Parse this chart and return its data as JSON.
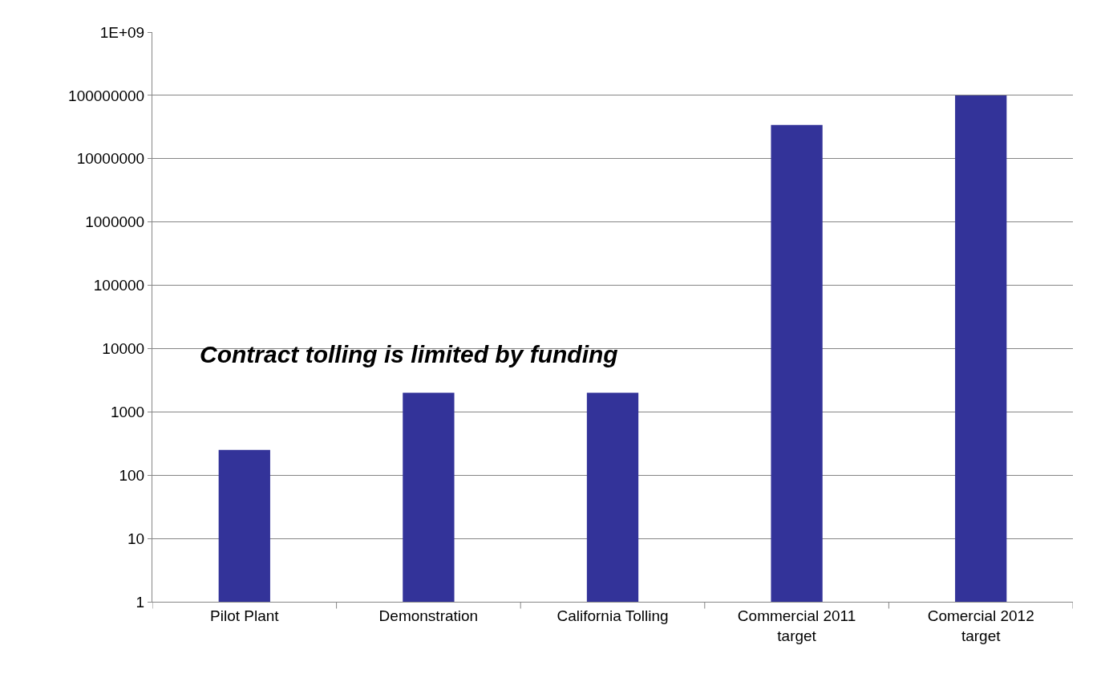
{
  "chart_data": {
    "type": "bar",
    "log": true,
    "categories": [
      "Pilot Plant",
      "Demonstration",
      "California Tolling",
      "Commercial 2011 target",
      "Comercial 2012 target"
    ],
    "values": [
      250,
      2000,
      2000,
      34000000,
      100000000
    ],
    "color": "#333399",
    "ylim": [
      1,
      1000000000
    ],
    "yticks": [
      1,
      10,
      100,
      1000,
      10000,
      100000,
      1000000,
      10000000,
      100000000,
      {
        "value": 1000000000,
        "label": "1E+09"
      }
    ],
    "grid": "y",
    "annotations": [
      "Contract tolling is limited by funding"
    ]
  }
}
